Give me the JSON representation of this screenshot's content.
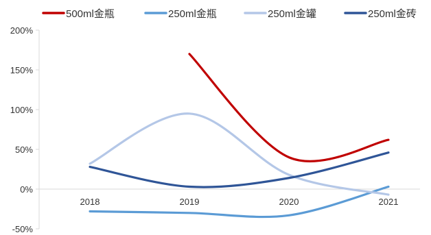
{
  "chart_data": {
    "type": "line",
    "title": "",
    "xlabel": "",
    "ylabel": "",
    "categories": [
      "2018",
      "2019",
      "2020",
      "2021"
    ],
    "ylim": [
      -50,
      200
    ],
    "yticks": [
      -50,
      0,
      50,
      100,
      150,
      200
    ],
    "ytick_labels": [
      "-50%",
      "0%",
      "50%",
      "100%",
      "150%",
      "200%"
    ],
    "grid": false,
    "smooth": true,
    "legend_position": "top",
    "series": [
      {
        "name": "500ml金瓶",
        "color": "#C00000",
        "values": [
          null,
          170,
          40,
          62
        ]
      },
      {
        "name": "250ml金瓶",
        "color": "#5B9BD5",
        "values": [
          -28,
          -30,
          -33,
          3
        ]
      },
      {
        "name": "250ml金罐",
        "color": "#B4C7E7",
        "values": [
          32,
          95,
          18,
          -7
        ]
      },
      {
        "name": "250ml金砖",
        "color": "#2F5597",
        "values": [
          28,
          3,
          14,
          46
        ]
      }
    ]
  }
}
